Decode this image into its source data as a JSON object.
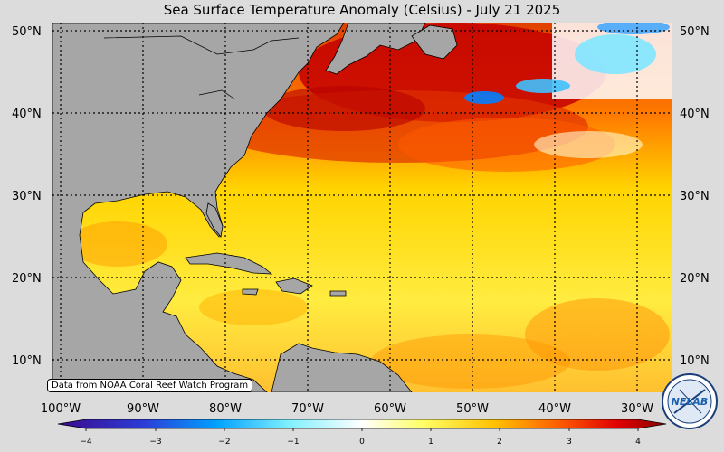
{
  "title": "Sea Surface Temperature Anomaly (Celsius) - July 21 2025",
  "credit": "Data from NOAA Coral Reef Watch Program",
  "logo": {
    "icon": "nelab-logo-icon",
    "text": "NELAB"
  },
  "map": {
    "lat_labels": [
      "50°N",
      "40°N",
      "30°N",
      "20°N",
      "10°N"
    ],
    "lon_labels": [
      "100°W",
      "90°W",
      "80°W",
      "70°W",
      "60°W",
      "50°W",
      "40°W",
      "30°W"
    ],
    "land_color": "#a6a6a6",
    "warm_color": "#cc0000",
    "cold_color": "#00aaff"
  },
  "colorbar": {
    "ticks": [
      "−4",
      "−3",
      "−2",
      "−1",
      "0",
      "1",
      "2",
      "3",
      "4"
    ],
    "colors": [
      "#3a0a8c",
      "#2c3cd6",
      "#00a0ff",
      "#7ff0ff",
      "#ffffff",
      "#ffff66",
      "#ffc000",
      "#ff6000",
      "#e00000",
      "#8a0000"
    ]
  }
}
